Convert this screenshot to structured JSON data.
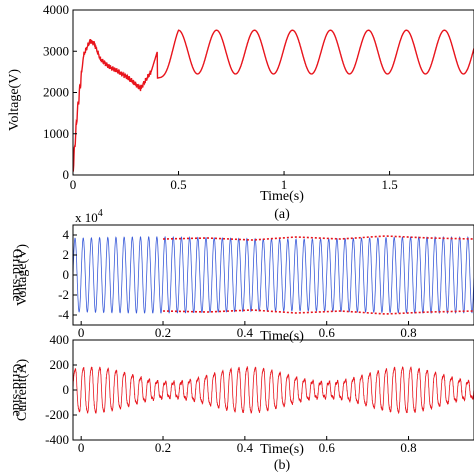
{
  "colors": {
    "voltage_dc": "#e8141c",
    "grid_voltage": "#3a5bd9",
    "envelope": "#e8141c",
    "grid_current": "#e8141c",
    "axis": "#000000"
  },
  "chart_data": [
    {
      "id": "dc-voltage",
      "type": "line",
      "xlabel": "Time(s)",
      "ylabel": "Voltage(V)",
      "xlim": [
        0,
        1.9
      ],
      "ylim": [
        0,
        4000
      ],
      "xticks": [
        0,
        0.5,
        1,
        1.5
      ],
      "xtick_labels": [
        "0",
        "0.5",
        "1",
        "1.5"
      ],
      "yticks": [
        0,
        1000,
        2000,
        3000,
        4000
      ],
      "ytick_labels": [
        "0",
        "1000",
        "2000",
        "3000",
        "4000"
      ],
      "caption": "(a)",
      "series": [
        {
          "description_points": {
            "x": [
              0,
              0.02,
              0.05,
              0.08,
              0.1,
              0.13,
              0.18,
              0.25,
              0.32,
              0.37,
              0.4,
              0.45,
              0.5,
              0.58,
              0.67,
              0.76,
              0.85,
              0.94,
              1.03,
              1.12,
              1.21,
              1.3,
              1.39,
              1.48,
              1.57,
              1.66,
              1.75,
              1.84
            ],
            "y": [
              100,
              1500,
              2900,
              3250,
              3200,
              2800,
              2600,
              2400,
              2100,
              2500,
              3000,
              3400,
              3500,
              2450,
              3500,
              2450,
              3500,
              2450,
              3500,
              2450,
              3500,
              2450,
              3500,
              2450,
              3500,
              2450,
              3500,
              2450
            ]
          },
          "oscillation": {
            "start": 0.4,
            "mean": 2980,
            "amplitude": 530,
            "period": 0.18
          }
        }
      ]
    },
    {
      "id": "grid-voltage",
      "type": "line",
      "xlabel": "Time(s)",
      "ylabel_lines": [
        "Grid-side",
        "Voltage(V)"
      ],
      "scale_label": "x 10",
      "scale_exponent": "4",
      "xlim": [
        -0.02,
        0.96
      ],
      "ylim": [
        -5,
        5
      ],
      "xticks": [
        0,
        0.2,
        0.4,
        0.6,
        0.8
      ],
      "xtick_labels": [
        "0",
        "0.2",
        "0.4",
        "0.6",
        "0.8"
      ],
      "yticks": [
        -4,
        -2,
        0,
        2,
        4
      ],
      "ytick_labels": [
        "-4",
        "-2",
        "0",
        "2",
        "4"
      ],
      "series": [
        {
          "kind": "sine",
          "amplitude": 3.7,
          "frequency_hz": 50
        },
        {
          "kind": "envelope",
          "x_start": 0.2,
          "values": [
            3.6,
            3.7,
            3.5,
            3.8,
            3.6,
            3.9,
            3.7,
            3.6
          ]
        }
      ]
    },
    {
      "id": "grid-current",
      "type": "line",
      "xlabel": "Time(s)",
      "ylabel_lines": [
        "Grid-side",
        "Current(A)"
      ],
      "xlim": [
        -0.02,
        0.96
      ],
      "ylim": [
        -400,
        400
      ],
      "xticks": [
        0,
        0.2,
        0.4,
        0.6,
        0.8
      ],
      "xtick_labels": [
        "0",
        "0.2",
        "0.4",
        "0.6",
        "0.8"
      ],
      "yticks": [
        -400,
        -200,
        0,
        200,
        400
      ],
      "ytick_labels": [
        "-400",
        "-200",
        "0",
        "200",
        "400"
      ],
      "caption": "(b)",
      "series": [
        {
          "kind": "modulated-sine",
          "base_amplitude": 120,
          "peak_amplitude": 190,
          "frequency_hz": 50
        }
      ]
    }
  ]
}
